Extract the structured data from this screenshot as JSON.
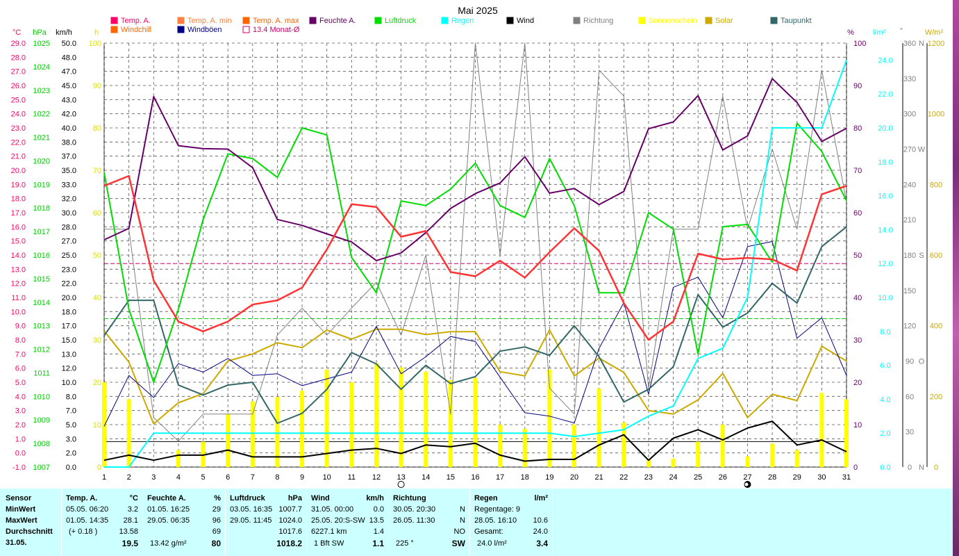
{
  "chart_data": {
    "type": "line",
    "title": "Mai 2025",
    "x": [
      1,
      2,
      3,
      4,
      5,
      6,
      7,
      8,
      9,
      10,
      11,
      12,
      13,
      14,
      15,
      16,
      17,
      18,
      19,
      20,
      21,
      22,
      23,
      24,
      25,
      26,
      27,
      28,
      29,
      30,
      31
    ],
    "legend": [
      {
        "name": "Temp. A.",
        "color": "#ff0066"
      },
      {
        "name": "Windchill",
        "color": "#ff6600"
      },
      {
        "name": "Temp. A. min",
        "color": "#ff8040"
      },
      {
        "name": "Windböen",
        "color": "#000080"
      },
      {
        "name": "Temp. A. max",
        "color": "#ff6600"
      },
      {
        "name": "13.4 Monat-Ø",
        "color": "#cc0066"
      },
      {
        "name": "Feuchte A.",
        "color": "#660066"
      },
      {
        "name": "Luftdruck",
        "color": "#00dd00"
      },
      {
        "name": "Regen",
        "color": "#00ffff"
      },
      {
        "name": "Wind",
        "color": "#000000"
      },
      {
        "name": "Richtung",
        "color": "#808080"
      },
      {
        "name": "Sonnenschein",
        "color": "#ffff00"
      },
      {
        "name": "Solar",
        "color": "#ccaa00"
      },
      {
        "name": "Taupunkt",
        "color": "#336666"
      }
    ],
    "axes": {
      "temp": {
        "unit": "°C",
        "color": "#ff0066",
        "min": -1,
        "max": 29,
        "ticks": [
          29.0,
          28.0,
          27.0,
          26.0,
          25.0,
          24.0,
          23.0,
          22.0,
          21.0,
          20.0,
          19.0,
          18.0,
          17.0,
          16.0,
          15.0,
          14.0,
          13.0,
          12.0,
          11.0,
          10.0,
          9.0,
          8.0,
          7.0,
          6.0,
          5.0,
          4.0,
          3.0,
          2.0,
          1.0,
          0.0,
          -1.0
        ]
      },
      "pressure": {
        "unit": "hPa",
        "color": "#00cc00",
        "min": 1007,
        "max": 1025,
        "ticks": [
          1025,
          1024,
          1023,
          1022,
          1021,
          1020,
          1019,
          1018,
          1017,
          1016,
          1015,
          1014,
          1013,
          1012,
          1011,
          1010,
          1009,
          1008,
          1007
        ]
      },
      "wind": {
        "unit": "km/h",
        "color": "#000000",
        "ticks": [
          "50.0",
          "48.0",
          "47.0",
          "45.0",
          "43.0",
          "42.0",
          "40.0",
          "38.0",
          "37.0",
          "35.0",
          "33.0",
          "32.0",
          "30.0",
          "28.0",
          "27.0",
          "25.0",
          "23.0",
          "22.0",
          "20.0",
          "18.0",
          "17.0",
          "15.0",
          "13.0",
          "12.0",
          "10.0",
          "8.0",
          "7.0",
          "5.0",
          "3.0",
          "2.0",
          "0.0"
        ]
      },
      "sun": {
        "unit": "h",
        "color": "#ffff00",
        "min": 0,
        "max": 100,
        "ticks": [
          100,
          90,
          80,
          70,
          60,
          50,
          40,
          30,
          20,
          10,
          0
        ]
      },
      "humidity": {
        "unit": "%",
        "color": "#660066",
        "min": 0,
        "max": 100,
        "ticks": [
          100,
          90,
          80,
          70,
          60,
          50,
          40,
          30,
          20,
          10,
          0
        ]
      },
      "rain": {
        "unit": "l/m²",
        "color": "#00ffff",
        "min": 0,
        "max": 25,
        "ticks": [
          "24.0",
          "22.0",
          "20.0",
          "18.0",
          "16.0",
          "14.0",
          "12.0",
          "10.0",
          "8.0",
          "6.0",
          "4.0",
          "2.0",
          "0.0"
        ]
      },
      "direction": {
        "unit": "°",
        "color": "#808080",
        "min": 0,
        "max": 360,
        "ticks": [
          360,
          330,
          300,
          270,
          240,
          210,
          180,
          150,
          120,
          90,
          60,
          30,
          0
        ],
        "compass": {
          "360": "N",
          "270": "W",
          "180": "S",
          "90": "O",
          "0": "N"
        }
      },
      "solar": {
        "unit": "W/m²",
        "color": "#ccaa00",
        "min": 0,
        "max": 1200,
        "ticks": [
          1200,
          1000,
          800,
          600,
          400,
          200,
          0
        ]
      }
    },
    "series": [
      {
        "name": "Temp. A.",
        "axis": "temp",
        "color": "#ff3333",
        "values": [
          18.9,
          19.6,
          12.2,
          9.3,
          8.6,
          9.3,
          10.5,
          10.8,
          11.7,
          14.4,
          17.6,
          17.4,
          15.3,
          15.7,
          12.8,
          12.5,
          13.6,
          12.4,
          14.2,
          15.9,
          14.3,
          10.6,
          8.0,
          9.3,
          14.1,
          13.7,
          13.8,
          13.7,
          12.9,
          18.3,
          18.9
        ]
      },
      {
        "name": "Temp. A. min",
        "axis": "temp",
        "color": "#ff7733",
        "values": [
          18.9,
          19.6,
          12.2,
          9.3,
          8.6,
          9.3,
          10.5,
          10.8,
          11.7,
          14.4,
          17.6,
          17.4,
          15.3,
          15.7,
          12.8,
          12.5,
          13.6,
          12.4,
          14.2,
          15.9,
          14.3,
          10.6,
          8.0,
          9.3,
          14.1,
          13.7,
          13.8,
          13.7,
          12.9,
          18.3,
          18.9
        ]
      },
      {
        "name": "Feuchte A.",
        "axis": "humidity",
        "color": "#660066",
        "values": [
          53.6,
          56.3,
          87.4,
          75.8,
          75.1,
          75.0,
          70.6,
          58.4,
          57.0,
          55.0,
          53.1,
          48.7,
          50.5,
          55.3,
          61.0,
          64.5,
          67.0,
          73.2,
          64.6,
          65.7,
          61.9,
          65.0,
          79.8,
          81.4,
          87.6,
          74.8,
          78.1,
          91.6,
          86.0,
          76.8,
          79.9
        ]
      },
      {
        "name": "Luftdruck",
        "axis": "pressure",
        "color": "#00dd00",
        "values": [
          1019.5,
          1013.7,
          1010.6,
          1013.7,
          1017.5,
          1020.3,
          1020.1,
          1019.3,
          1021.4,
          1021.1,
          1015.9,
          1014.4,
          1018.3,
          1018.1,
          1018.8,
          1019.9,
          1018.1,
          1017.6,
          1020.1,
          1018.1,
          1014.4,
          1014.4,
          1017.8,
          1017.1,
          1011.8,
          1017.2,
          1017.3,
          1015.7,
          1021.6,
          1020.4,
          1018.3
        ]
      },
      {
        "name": "Regen",
        "axis": "rain",
        "color": "#00ffff",
        "values": [
          0.0,
          0.0,
          2.0,
          2.0,
          2.0,
          2.0,
          2.0,
          2.0,
          2.0,
          2.0,
          2.0,
          2.0,
          2.0,
          2.0,
          2.0,
          2.0,
          2.0,
          2.0,
          2.0,
          1.8,
          2.0,
          2.2,
          3.0,
          3.6,
          6.4,
          7.0,
          10.0,
          20.0,
          20.0,
          20.0,
          24.0
        ]
      },
      {
        "name": "Wind",
        "axis": "wind",
        "color": "#000000",
        "values": [
          0.8,
          1.4,
          0.8,
          1.4,
          1.4,
          2.0,
          1.2,
          1.2,
          1.2,
          1.6,
          2.0,
          2.2,
          1.6,
          2.6,
          2.4,
          2.8,
          1.4,
          0.7,
          0.9,
          0.9,
          2.6,
          3.8,
          0.8,
          3.4,
          4.4,
          3.2,
          4.6,
          5.4,
          2.6,
          3.2,
          1.8
        ]
      },
      {
        "name": "Windböen",
        "axis": "wind",
        "color": "#000080",
        "values": [
          4.8,
          10.8,
          8.2,
          12.2,
          11.2,
          12.8,
          10.8,
          11.0,
          9.6,
          10.4,
          11.2,
          16.6,
          11.0,
          13.0,
          15.4,
          14.8,
          10.6,
          6.4,
          6.0,
          5.2,
          14.0,
          19.4,
          8.6,
          21.2,
          22.4,
          17.6,
          26.0,
          26.6,
          15.2,
          17.6,
          10.8
        ]
      },
      {
        "name": "Richtung",
        "axis": "direction",
        "color": "#808080",
        "values": [
          202,
          202,
          42,
          22,
          45,
          45,
          45,
          112,
          135,
          112,
          135,
          157,
          112,
          180,
          45,
          360,
          180,
          360,
          67,
          45,
          337,
          315,
          67,
          202,
          202,
          315,
          202,
          270,
          202,
          337,
          225
        ]
      },
      {
        "name": "Solar",
        "axis": "solar",
        "color": "#ccaa00",
        "values": [
          385,
          297,
          122,
          182,
          208,
          300,
          320,
          352,
          338,
          388,
          362,
          390,
          390,
          375,
          383,
          383,
          270,
          258,
          388,
          258,
          308,
          268,
          160,
          150,
          190,
          265,
          140,
          206,
          188,
          342,
          300
        ]
      },
      {
        "name": "Taupunkt",
        "axis": "temp",
        "color": "#336666",
        "values": [
          8.3,
          10.8,
          10.8,
          4.8,
          4.1,
          4.8,
          5.0,
          2.1,
          2.8,
          4.5,
          7.1,
          6.3,
          4.5,
          6.2,
          4.9,
          5.4,
          7.2,
          7.5,
          6.9,
          9.0,
          6.8,
          3.6,
          4.5,
          6.1,
          11.2,
          8.9,
          9.9,
          12.0,
          10.6,
          14.6,
          16.0
        ]
      }
    ],
    "sunshine_hours_bars": [
      8.0,
      6.4,
      0.0,
      1.6,
      2.4,
      5.0,
      6.2,
      6.6,
      7.2,
      9.2,
      8.0,
      9.8,
      9.4,
      9.0,
      8.2,
      8.4,
      4.0,
      3.6,
      9.2,
      4.0,
      7.4,
      4.2,
      0.8,
      0.8,
      2.4,
      4.0,
      1.0,
      2.2,
      1.6,
      7.0,
      6.4
    ],
    "monthly_mean_temp": 13.4,
    "monthly_mean_pressure": 1013.3,
    "moon_phases": [
      {
        "day": 13,
        "phase": "full"
      },
      {
        "day": 27,
        "phase": "new"
      }
    ]
  },
  "stats": {
    "sensor": {
      "title": "Sensor",
      "rows": [
        "MinWert",
        "MaxWert",
        "Durchschnitt",
        "31.05."
      ]
    },
    "temp": {
      "title": "Temp. A.",
      "unit": "°C",
      "min_time": "05.05.  06:20",
      "min_val": "3.2",
      "max_time": "01.05.  14:35",
      "max_val": "28.1",
      "avg_note": "(+ 0.18 )",
      "avg_val": "13.58",
      "today": "19.5"
    },
    "humidity": {
      "title": "Feuchte A.",
      "unit": "%",
      "min_time": "01.05.  16:25",
      "min_val": "29",
      "max_time": "29.05.  06:35",
      "max_val": "96",
      "avg_val": "69",
      "today_note": "13.42 g/m²",
      "today": "80"
    },
    "pressure": {
      "title": "Luftdruck",
      "unit": "hPa",
      "min_time": "03.05.  16:35",
      "min_val": "1007.7",
      "max_time": "29.05.  11:45",
      "max_val": "1024.0",
      "avg_val": "1017.6",
      "today": "1018.2"
    },
    "wind": {
      "title": "Wind",
      "unit": "km/h",
      "min_time": "31.05.  00:00",
      "min_val": "0.0",
      "max_time": "25.05.  20:S-SW",
      "max_val": "13.5",
      "avg_note": "6227.1 km",
      "avg_val": "1.4",
      "today_note": "1 Bft SW",
      "today": "1.1"
    },
    "direction": {
      "title": "Richtung",
      "min_time": "30.05.  20:30",
      "min_val": "N",
      "max_time": "26.05.  11:30",
      "max_val": "N",
      "avg_val": "NO",
      "today_note": "225 °",
      "today": "SW"
    },
    "rain": {
      "title": "Regen",
      "unit": "l/m²",
      "row1": "Regentage: 9",
      "row2_time": "28.05.  16:10",
      "row2_val": "10.6",
      "row3_label": "Gesamt:",
      "row3_val": "24.0",
      "today_note": "24.0 l/m²",
      "today": "3.4"
    }
  }
}
